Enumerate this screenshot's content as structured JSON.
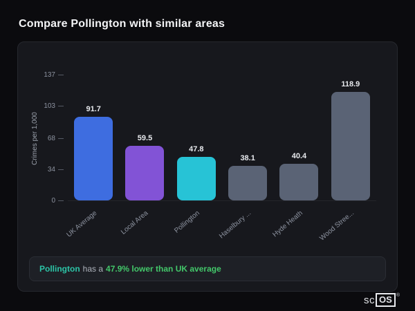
{
  "page": {
    "title": "Compare Pollington with similar areas"
  },
  "chart_data": {
    "type": "bar",
    "title": "",
    "xlabel": "",
    "ylabel": "Crimes per 1,000",
    "ylim": [
      0,
      137
    ],
    "yticks": [
      0,
      34,
      68,
      103,
      137
    ],
    "grid": false,
    "legend": false,
    "categories": [
      "UK Average",
      "Local Area",
      "Pollington",
      "Haselbury ...",
      "Hyde Heath",
      "Wood Stree..."
    ],
    "values": [
      91.7,
      59.5,
      47.8,
      38.1,
      40.4,
      118.9
    ],
    "value_labels": [
      "91.7",
      "59.5",
      "47.8",
      "38.1",
      "40.4",
      "118.9"
    ],
    "bar_colors": [
      "#3e6de0",
      "#8253d6",
      "#27c3d6",
      "#5a6375",
      "#5a6375",
      "#5a6375"
    ]
  },
  "footer": {
    "area_name": "Pollington",
    "middle_text": "has a",
    "highlight_text": "47.9% lower than UK average"
  },
  "logo": {
    "prefix": "sc",
    "boxed": "OS",
    "reg": "®"
  }
}
